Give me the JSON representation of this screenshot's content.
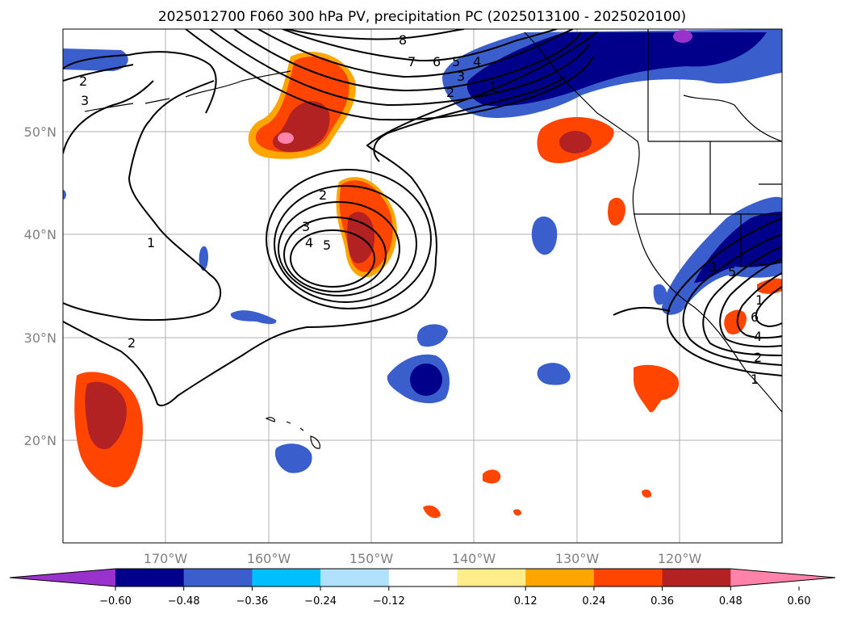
{
  "title": "2025012700 F060 300 hPa PV, precipitation PC (2025013100 - 2025020100)",
  "lon_labels": [
    "170°W",
    "160°W",
    "150°W",
    "140°W",
    "130°W",
    "120°W"
  ],
  "lat_labels": [
    "50°N",
    "40°N",
    "30°N",
    "20°N"
  ],
  "colorbar": {
    "ticks": [
      "−0.60",
      "−0.48",
      "−0.36",
      "−0.24",
      "−0.12",
      "0.12",
      "0.24",
      "0.36",
      "0.48",
      "0.60"
    ],
    "colors": [
      "#9932cc",
      "#00008b",
      "#3a5fcd",
      "#00bfff",
      "#b0e2ff",
      "#ffffff",
      "#ffec8b",
      "#ffa500",
      "#ff4500",
      "#b22222",
      "#ff82ab"
    ]
  },
  "contour_labels": [
    "2",
    "3",
    "8",
    "7",
    "6",
    "5",
    "4",
    "3",
    "2",
    "1",
    "2",
    "3",
    "4",
    "5",
    "1",
    "2",
    "3",
    "5",
    "1",
    "6",
    "4",
    "2",
    "1"
  ]
}
